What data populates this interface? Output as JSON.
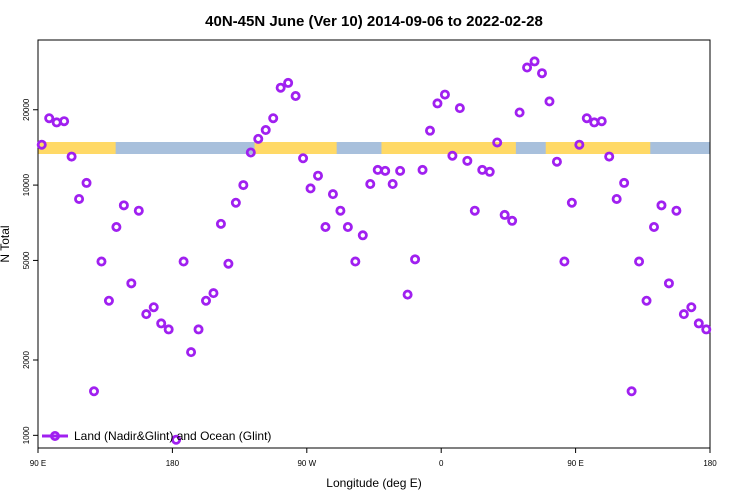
{
  "chart_data": {
    "type": "scatter",
    "title": "40N-45N June (Ver 10)   2014-09-06 to 2022-02-28",
    "xlabel": "Longitude (deg E)",
    "ylabel": "N Total",
    "x_ticks": [
      {
        "value": 0,
        "label": "90 E"
      },
      {
        "value": 90,
        "label": "180"
      },
      {
        "value": 180,
        "label": "90 W"
      },
      {
        "value": 270,
        "label": "0"
      },
      {
        "value": 360,
        "label": "90 E"
      },
      {
        "value": 450,
        "label": "180"
      }
    ],
    "y_ticks": [
      {
        "value": 1000,
        "label": "1000"
      },
      {
        "value": 2000,
        "label": "2000"
      },
      {
        "value": 5000,
        "label": "5000"
      },
      {
        "value": 10000,
        "label": "10000"
      },
      {
        "value": 20000,
        "label": "20000"
      }
    ],
    "xlim": [
      0,
      450
    ],
    "ylim": [
      890,
      38000
    ],
    "y_scale": "log",
    "grid": false,
    "legend_position": "bottom-left",
    "marker_color": "#a020f0",
    "land_color": "#ffd966",
    "ocean_color": "#a8c0dc",
    "series": [
      {
        "name": "Land (Nadir&Glint) and Ocean (Glint)",
        "x": [
          2.5,
          7.5,
          12.5,
          17.5,
          22.5,
          27.5,
          32.5,
          37.5,
          42.5,
          47.5,
          52.5,
          57.5,
          62.5,
          67.5,
          72.5,
          77.5,
          82.5,
          87.5,
          92.5,
          97.5,
          102.5,
          107.5,
          112.5,
          117.5,
          122.5,
          127.5,
          132.5,
          137.5,
          142.5,
          147.5,
          152.5,
          157.5,
          162.5,
          167.5,
          172.5,
          177.5,
          182.5,
          187.5,
          192.5,
          197.5,
          202.5,
          207.5,
          212.5,
          217.5,
          222.5,
          227.5,
          232.5,
          237.5,
          242.5,
          247.5,
          252.5,
          257.5,
          262.5,
          267.5,
          272.5,
          277.5,
          282.5,
          287.5,
          292.5,
          297.5,
          302.5,
          307.5,
          312.5,
          317.5,
          322.5,
          327.5,
          332.5,
          337.5,
          342.5,
          347.5,
          352.5,
          357.5,
          362.5,
          367.5,
          372.5,
          377.5,
          382.5,
          387.5,
          392.5,
          397.5,
          402.5,
          407.5,
          412.5,
          417.5,
          422.5,
          427.5,
          432.5,
          437.5,
          442.5,
          447.5
        ],
        "y": [
          14500,
          18500,
          17800,
          18000,
          13000,
          8800,
          10200,
          1500,
          4950,
          3450,
          6800,
          8300,
          4050,
          7900,
          3050,
          3250,
          2800,
          2650,
          960,
          4950,
          2150,
          2650,
          3450,
          3700,
          7000,
          4850,
          8500,
          10000,
          13500,
          15300,
          16600,
          18500,
          24500,
          25600,
          22700,
          12800,
          9700,
          10900,
          6800,
          9200,
          7900,
          6800,
          4950,
          6300,
          10100,
          11500,
          11400,
          10100,
          11400,
          3650,
          5050,
          11500,
          16500,
          21200,
          23000,
          13100,
          20300,
          12500,
          7900,
          11500,
          11300,
          14800,
          7600,
          7200,
          19500,
          29500,
          31200,
          28000,
          21600,
          12400,
          4950,
          8500,
          14500,
          18500,
          17800,
          18000,
          13000,
          8800,
          10200,
          1500,
          4950,
          3450,
          6800,
          8300,
          4050,
          7900,
          3050,
          3250,
          2800,
          2650
        ]
      }
    ]
  }
}
